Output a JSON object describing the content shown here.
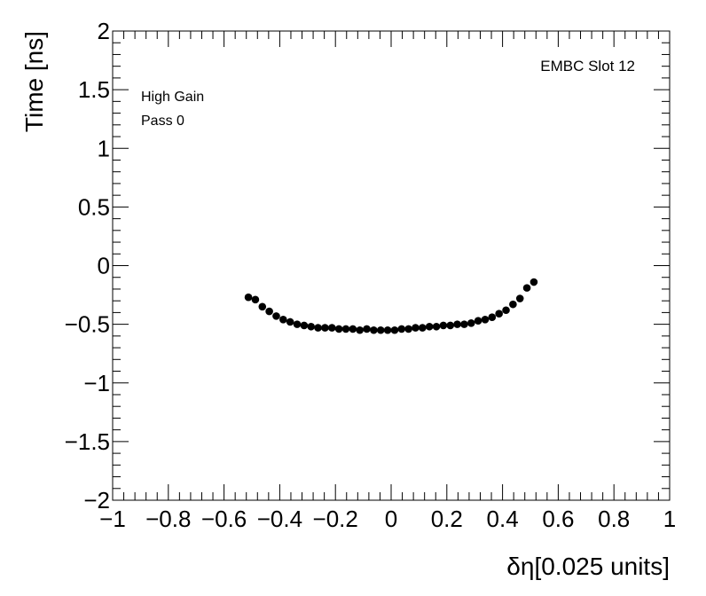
{
  "chart_data": {
    "type": "scatter",
    "title": "",
    "xlabel": "δη[0.025 units]",
    "ylabel": "Time [ns]",
    "xlim": [
      -1,
      1
    ],
    "ylim": [
      -2,
      2
    ],
    "grid": false,
    "x_tick_values": [
      -1,
      -0.8,
      -0.6,
      -0.4,
      -0.2,
      0,
      0.2,
      0.4,
      0.6,
      0.8,
      1
    ],
    "x_tick_labels": [
      "−1",
      "−0.8",
      "−0.6",
      "−0.4",
      "−0.2",
      "0",
      "0.2",
      "0.4",
      "0.6",
      "0.8",
      "1"
    ],
    "y_tick_values": [
      -2,
      -1.5,
      -1,
      -0.5,
      0,
      0.5,
      1,
      1.5,
      2
    ],
    "y_tick_labels": [
      "−2",
      "−1.5",
      "−1",
      "−0.5",
      "0",
      "0.5",
      "1",
      "1.5",
      "2"
    ],
    "annotations": {
      "gain": "High Gain",
      "pass": "Pass 0",
      "slot": "EMBC Slot 12"
    },
    "series": [
      {
        "marker_color": "#000000",
        "x": [
          -0.5125,
          -0.4875,
          -0.4625,
          -0.4375,
          -0.4125,
          -0.3875,
          -0.3625,
          -0.3375,
          -0.3125,
          -0.2875,
          -0.2625,
          -0.2375,
          -0.2125,
          -0.1875,
          -0.1625,
          -0.1375,
          -0.1125,
          -0.0875,
          -0.0625,
          -0.0375,
          -0.0125,
          0.0125,
          0.0375,
          0.0625,
          0.0875,
          0.1125,
          0.1375,
          0.1625,
          0.1875,
          0.2125,
          0.2375,
          0.2625,
          0.2875,
          0.3125,
          0.3375,
          0.3625,
          0.3875,
          0.4125,
          0.4375,
          0.4625,
          0.4875,
          0.5125
        ],
        "y": [
          -0.27,
          -0.29,
          -0.35,
          -0.39,
          -0.43,
          -0.46,
          -0.48,
          -0.5,
          -0.51,
          -0.52,
          -0.53,
          -0.53,
          -0.53,
          -0.54,
          -0.54,
          -0.54,
          -0.55,
          -0.54,
          -0.55,
          -0.55,
          -0.55,
          -0.55,
          -0.54,
          -0.54,
          -0.53,
          -0.53,
          -0.52,
          -0.52,
          -0.51,
          -0.51,
          -0.5,
          -0.5,
          -0.49,
          -0.47,
          -0.46,
          -0.44,
          -0.41,
          -0.38,
          -0.33,
          -0.28,
          -0.19,
          -0.14
        ]
      }
    ]
  }
}
